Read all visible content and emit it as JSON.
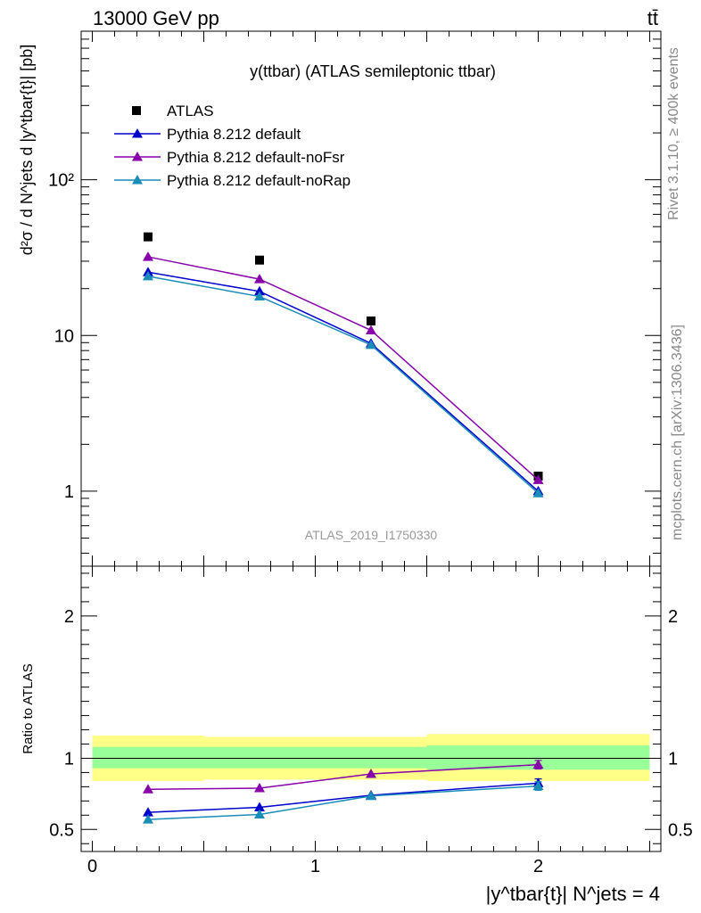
{
  "header": {
    "energy_label": "13000 GeV pp",
    "process_label": "tt̄"
  },
  "side_labels": {
    "rivet": "Rivet 3.1.10, ≥ 400k events",
    "source": "mcplots.cern.ch [arXiv:1306.3436]"
  },
  "chart_data": [
    {
      "type": "line",
      "panel": "main",
      "title": "y(ttbar) (ATLAS semileptonic ttbar)",
      "watermark": "ATLAS_2019_I1750330",
      "ylabel": "d²σ / d N^jets d |y^tbar{t}| [pb]",
      "y_scale": "log",
      "ylim": [
        0.33,
        900
      ],
      "xlim": [
        -0.05,
        2.55
      ],
      "y_tick_labels": [
        "1",
        "10",
        "10²"
      ],
      "legend_position": "top-left",
      "x": [
        0.25,
        0.75,
        1.25,
        2.0
      ],
      "series": [
        {
          "name": "ATLAS",
          "marker": "square",
          "color": "#000000",
          "line": false,
          "values": [
            43,
            30.5,
            12.4,
            1.25
          ]
        },
        {
          "name": "Pythia 8.212 default",
          "marker": "triangle",
          "color": "#0000cc",
          "line": true,
          "values": [
            25.5,
            19.2,
            8.9,
            1.0
          ]
        },
        {
          "name": "Pythia 8.212 default-noFsr",
          "marker": "triangle",
          "color": "#8800aa",
          "line": true,
          "values": [
            32,
            23,
            10.8,
            1.18
          ]
        },
        {
          "name": "Pythia 8.212 default-noRap",
          "marker": "triangle",
          "color": "#1a8cb8",
          "line": true,
          "values": [
            24,
            17.8,
            8.7,
            0.97
          ]
        }
      ]
    },
    {
      "type": "line",
      "panel": "ratio",
      "ylabel": "Ratio to ATLAS",
      "xlabel": "|y^tbar{t}| N^jets = 4",
      "ylim": [
        0.345,
        2.35
      ],
      "xlim": [
        -0.05,
        2.55
      ],
      "x_tick_labels": [
        "0",
        "1",
        "2"
      ],
      "y_tick_labels": [
        "0.5",
        "1",
        "2"
      ],
      "x": [
        0.25,
        0.75,
        1.25,
        2.0
      ],
      "bands": [
        {
          "name": "outer uncertainty",
          "color": "#ffff88",
          "bins": [
            [
              0,
              0.5,
              0.84,
              1.16
            ],
            [
              0.5,
              1.5,
              0.85,
              1.15
            ],
            [
              1.5,
              2.5,
              0.84,
              1.17
            ]
          ]
        },
        {
          "name": "inner uncertainty",
          "color": "#99ff99",
          "bins": [
            [
              0,
              0.5,
              0.93,
              1.08
            ],
            [
              0.5,
              1.5,
              0.93,
              1.08
            ],
            [
              1.5,
              2.5,
              0.92,
              1.09
            ]
          ]
        }
      ],
      "series": [
        {
          "name": "Pythia 8.212 default",
          "color": "#0000cc",
          "values": [
            0.62,
            0.655,
            0.74,
            0.825
          ],
          "errors": [
            0,
            0,
            0,
            0.03
          ]
        },
        {
          "name": "Pythia 8.212 default-noFsr",
          "color": "#8800aa",
          "values": [
            0.782,
            0.79,
            0.89,
            0.955
          ],
          "errors": [
            0,
            0,
            0,
            0.03
          ]
        },
        {
          "name": "Pythia 8.212 default-noRap",
          "color": "#1a8cb8",
          "values": [
            0.57,
            0.605,
            0.735,
            0.805
          ],
          "errors": [
            0,
            0,
            0,
            0.03
          ]
        }
      ]
    }
  ]
}
